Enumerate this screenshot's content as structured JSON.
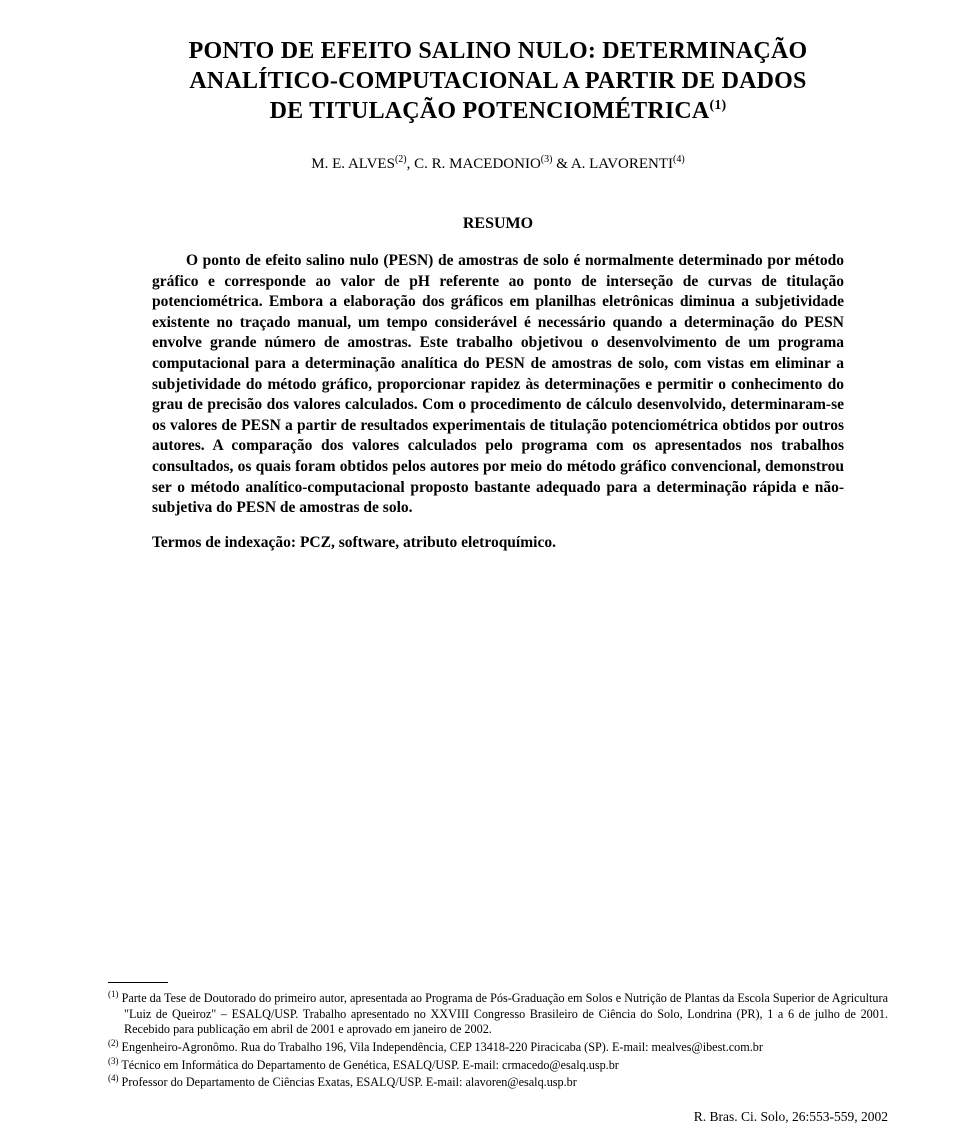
{
  "title_line1": "PONTO DE EFEITO SALINO NULO: DETERMINAÇÃO",
  "title_line2": "ANALÍTICO-COMPUTACIONAL A PARTIR DE DADOS",
  "title_line3": "DE TITULAÇÃO POTENCIOMÉTRICA",
  "title_sup": "(1)",
  "authors": {
    "a1": "M. E. ALVES",
    "s1": "(2)",
    "sep1": ", ",
    "a2": "C. R. MACEDONIO",
    "s2": "(3)",
    "sep2": " & ",
    "a3": "A. LAVORENTI",
    "s3": "(4)"
  },
  "resumo_heading": "RESUMO",
  "abstract_body": "O ponto de efeito salino nulo (PESN) de amostras de solo é normalmente determinado por método gráfico e corresponde ao valor de pH referente ao ponto de interseção de curvas de titulação potenciométrica. Embora a elaboração dos gráficos em planilhas eletrônicas diminua a subjetividade existente no traçado manual, um tempo considerável é necessário quando a determinação do PESN envolve grande número de amostras. Este trabalho objetivou o desenvolvimento de um programa computacional para a determinação analítica do PESN de amostras de solo, com vistas em eliminar a subjetividade do método gráfico, proporcionar rapidez às determinações e permitir o conhecimento do grau de precisão dos valores calculados. Com o procedimento de cálculo desenvolvido, determinaram-se os valores de PESN a partir de resultados experimentais de titulação potenciométrica obtidos por outros autores. A comparação dos valores calculados pelo programa com os apresentados nos trabalhos consultados, os quais foram obtidos pelos autores por meio do método gráfico convencional, demonstrou ser o método analítico-computacional proposto bastante adequado para a determinação rápida e não-subjetiva do PESN de amostras de solo.",
  "index_terms": "Termos de indexação: PCZ, software, atributo eletroquímico.",
  "footnotes": {
    "f1_sup": "(1)",
    "f1": " Parte da Tese de Doutorado do primeiro autor, apresentada ao Programa de Pós-Graduação em Solos e Nutrição de Plantas da Escola Superior de Agricultura \"Luiz de Queiroz\" – ESALQ/USP. Trabalho apresentado no XXVIII Congresso Brasileiro de Ciência do Solo, Londrina (PR), 1 a 6 de julho de 2001. Recebido para publicação em abril de 2001 e aprovado em janeiro de 2002.",
    "f2_sup": "(2)",
    "f2": " Engenheiro-Agronômo. Rua do Trabalho 196, Vila Independência, CEP 13418-220 Piracicaba (SP). E-mail: mealves@ibest.com.br",
    "f3_sup": "(3)",
    "f3": " Técnico em Informática do Departamento de Genética, ESALQ/USP. E-mail: crmacedo@esalq.usp.br",
    "f4_sup": "(4)",
    "f4": " Professor do Departamento de Ciências Exatas, ESALQ/USP. E-mail: alavoren@esalq.usp.br"
  },
  "journal_ref": "R. Bras. Ci. Solo, 26:553-559, 2002"
}
